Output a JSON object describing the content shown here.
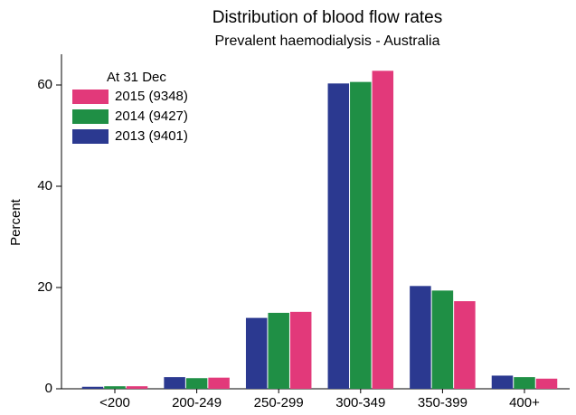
{
  "chart_data": {
    "type": "bar",
    "title": "Distribution of blood flow rates",
    "subtitle": "Prevalent haemodialysis - Australia",
    "y_label": "Percent",
    "legend_title": "At 31 Dec",
    "categories": [
      "<200",
      "200-249",
      "250-299",
      "300-349",
      "350-399",
      "400+"
    ],
    "series": [
      {
        "name": "2013 (9401)",
        "color": "#2b3990",
        "values": [
          0.4,
          2.3,
          14.0,
          60.3,
          20.3,
          2.6
        ]
      },
      {
        "name": "2014 (9427)",
        "color": "#1f8f45",
        "values": [
          0.5,
          2.1,
          15.0,
          60.6,
          19.4,
          2.3
        ]
      },
      {
        "name": "2015 (9348)",
        "color": "#e2397a",
        "values": [
          0.5,
          2.2,
          15.2,
          62.8,
          17.3,
          2.0
        ]
      }
    ],
    "ylim": [
      0,
      66
    ],
    "yticks": [
      0,
      20,
      40,
      60
    ],
    "legend": "upper left"
  }
}
